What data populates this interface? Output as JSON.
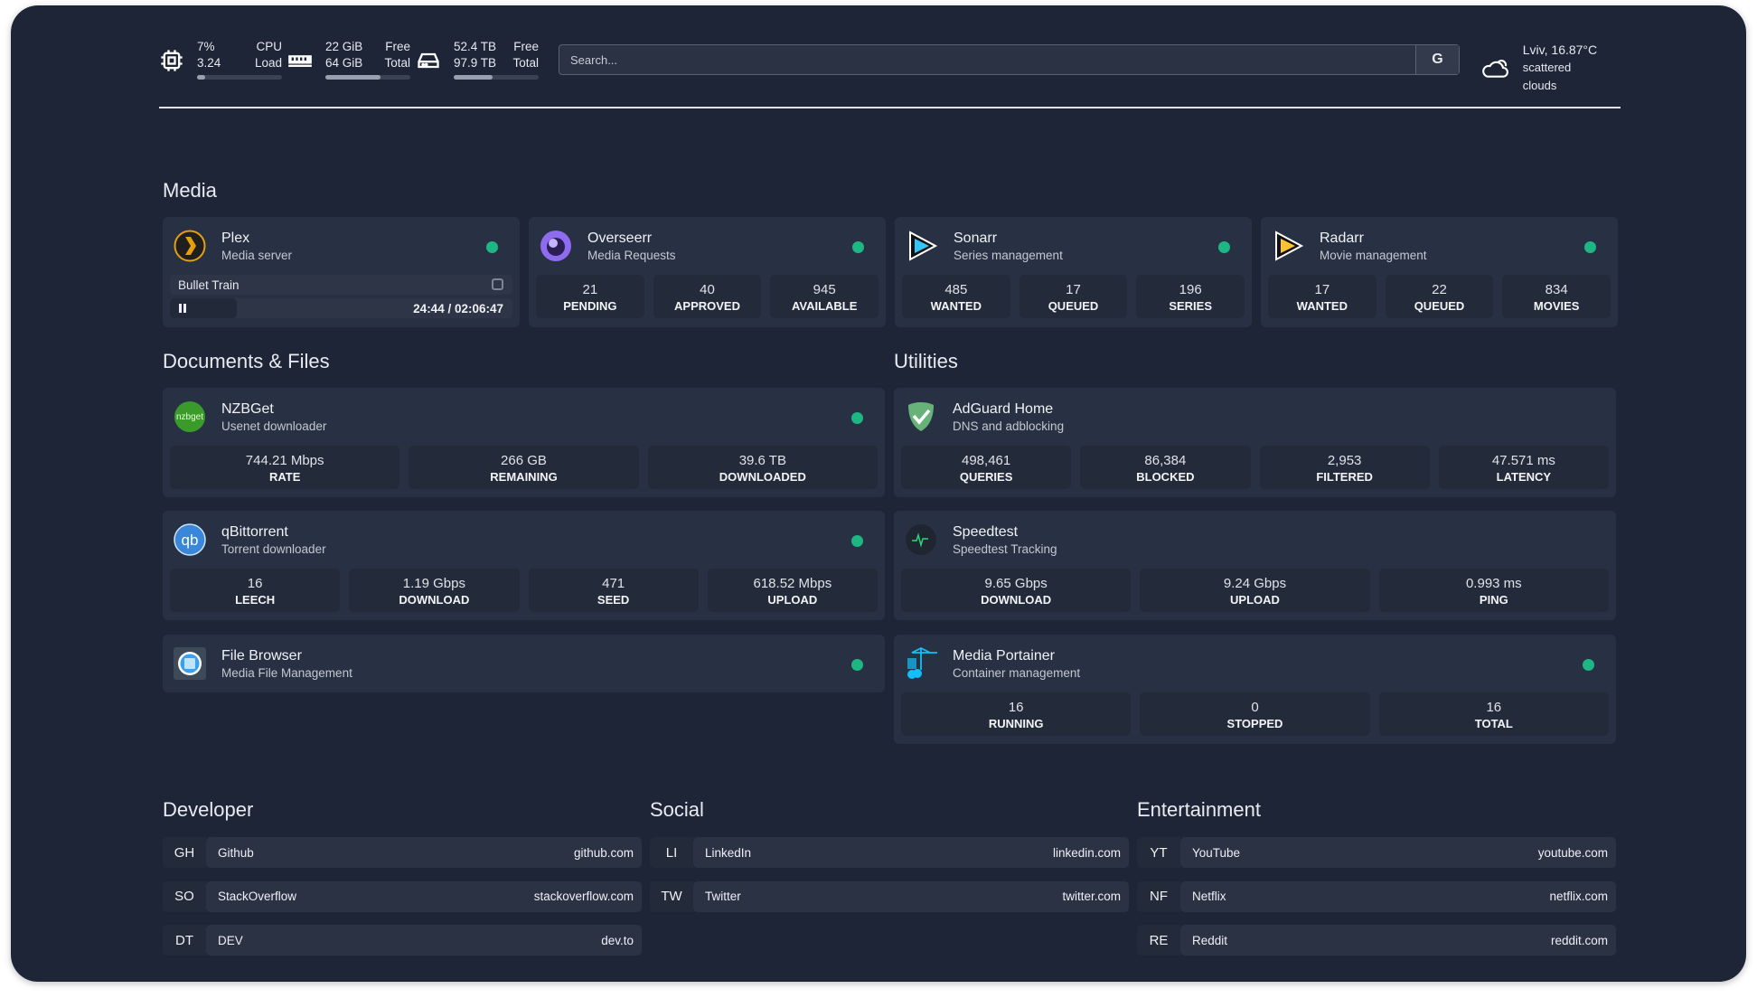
{
  "header": {
    "cpu": {
      "icon": "cpu-icon",
      "usage": "7%",
      "load": "3.24",
      "usage_label": "CPU",
      "load_label": "Load",
      "percent": 7
    },
    "memory": {
      "icon": "memory-icon",
      "free": "22 GiB",
      "total": "64 GiB",
      "free_label": "Free",
      "total_label": "Total",
      "used_percent": 65
    },
    "disk": {
      "icon": "disk-icon",
      "free": "52.4 TB",
      "total": "97.9 TB",
      "free_label": "Free",
      "total_label": "Total",
      "used_percent": 46
    },
    "search": {
      "placeholder": "Search...",
      "provider": "G"
    },
    "weather": {
      "icon": "cloud-icon",
      "location_temp": "Lviv, 16.87°C",
      "condition": "scattered clouds"
    }
  },
  "colors": {
    "background": "#1e2537",
    "card": "#283143",
    "status_online": "#1db784"
  },
  "sections": {
    "media": {
      "title": "Media",
      "services": [
        {
          "name": "Plex",
          "description": "Media server",
          "icon": "plex-icon",
          "now_playing": {
            "title": "Bullet Train",
            "time": "24:44 / 02:06:47",
            "state": "paused",
            "progress_percent": 19.5
          }
        },
        {
          "name": "Overseerr",
          "description": "Media Requests",
          "icon": "overseerr-icon",
          "stats": [
            {
              "value": "21",
              "label": "PENDING"
            },
            {
              "value": "40",
              "label": "APPROVED"
            },
            {
              "value": "945",
              "label": "AVAILABLE"
            }
          ]
        },
        {
          "name": "Sonarr",
          "description": "Series management",
          "icon": "sonarr-icon",
          "stats": [
            {
              "value": "485",
              "label": "WANTED"
            },
            {
              "value": "17",
              "label": "QUEUED"
            },
            {
              "value": "196",
              "label": "SERIES"
            }
          ]
        },
        {
          "name": "Radarr",
          "description": "Movie management",
          "icon": "radarr-icon",
          "stats": [
            {
              "value": "17",
              "label": "WANTED"
            },
            {
              "value": "22",
              "label": "QUEUED"
            },
            {
              "value": "834",
              "label": "MOVIES"
            }
          ]
        }
      ]
    },
    "documents": {
      "title": "Documents & Files",
      "services": [
        {
          "name": "NZBGet",
          "description": "Usenet downloader",
          "icon": "nzbget-icon",
          "stats": [
            {
              "value": "744.21 Mbps",
              "label": "RATE"
            },
            {
              "value": "266 GB",
              "label": "REMAINING"
            },
            {
              "value": "39.6 TB",
              "label": "DOWNLOADED"
            }
          ]
        },
        {
          "name": "qBittorrent",
          "description": "Torrent downloader",
          "icon": "qbittorrent-icon",
          "stats": [
            {
              "value": "16",
              "label": "LEECH"
            },
            {
              "value": "1.19 Gbps",
              "label": "DOWNLOAD"
            },
            {
              "value": "471",
              "label": "SEED"
            },
            {
              "value": "618.52 Mbps",
              "label": "UPLOAD"
            }
          ]
        },
        {
          "name": "File Browser",
          "description": "Media File Management",
          "icon": "filebrowser-icon"
        }
      ]
    },
    "utilities": {
      "title": "Utilities",
      "services": [
        {
          "name": "AdGuard Home",
          "description": "DNS and adblocking",
          "icon": "adguard-icon",
          "nodot": true,
          "stats": [
            {
              "value": "498,461",
              "label": "QUERIES"
            },
            {
              "value": "86,384",
              "label": "BLOCKED"
            },
            {
              "value": "2,953",
              "label": "FILTERED"
            },
            {
              "value": "47.571 ms",
              "label": "LATENCY"
            }
          ]
        },
        {
          "name": "Speedtest",
          "description": "Speedtest Tracking",
          "icon": "speedtest-icon",
          "nodot": true,
          "stats": [
            {
              "value": "9.65 Gbps",
              "label": "DOWNLOAD"
            },
            {
              "value": "9.24 Gbps",
              "label": "UPLOAD"
            },
            {
              "value": "0.993 ms",
              "label": "PING"
            }
          ]
        },
        {
          "name": "Media Portainer",
          "description": "Container management",
          "icon": "portainer-icon",
          "stats": [
            {
              "value": "16",
              "label": "RUNNING"
            },
            {
              "value": "0",
              "label": "STOPPED"
            },
            {
              "value": "16",
              "label": "TOTAL"
            }
          ]
        }
      ]
    }
  },
  "bookmarks": [
    {
      "title": "Developer",
      "items": [
        {
          "abbr": "GH",
          "name": "Github",
          "url": "github.com"
        },
        {
          "abbr": "SO",
          "name": "StackOverflow",
          "url": "stackoverflow.com"
        },
        {
          "abbr": "DT",
          "name": "DEV",
          "url": "dev.to"
        }
      ]
    },
    {
      "title": "Social",
      "items": [
        {
          "abbr": "LI",
          "name": "LinkedIn",
          "url": "linkedin.com"
        },
        {
          "abbr": "TW",
          "name": "Twitter",
          "url": "twitter.com"
        }
      ]
    },
    {
      "title": "Entertainment",
      "items": [
        {
          "abbr": "YT",
          "name": "YouTube",
          "url": "youtube.com"
        },
        {
          "abbr": "NF",
          "name": "Netflix",
          "url": "netflix.com"
        },
        {
          "abbr": "RE",
          "name": "Reddit",
          "url": "reddit.com"
        }
      ]
    }
  ]
}
